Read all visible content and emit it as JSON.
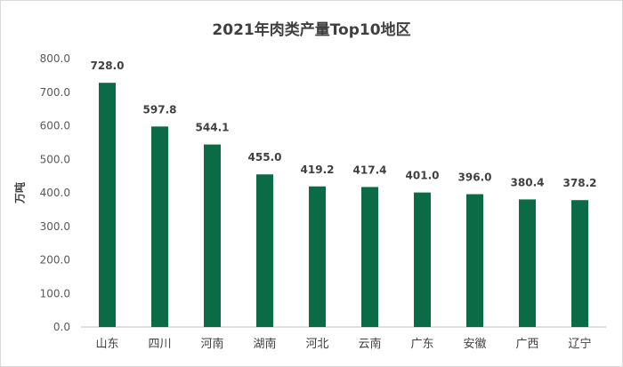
{
  "chart_data": {
    "type": "bar",
    "title": "2021年肉类产量Top10地区",
    "ylabel": "万吨",
    "xlabel": "",
    "categories": [
      "山东",
      "四川",
      "河南",
      "湖南",
      "河北",
      "云南",
      "广东",
      "安徽",
      "广西",
      "辽宁"
    ],
    "values": [
      728.0,
      597.8,
      544.1,
      455.0,
      419.2,
      417.4,
      401.0,
      396.0,
      380.4,
      378.2
    ],
    "value_labels": [
      "728.0",
      "597.8",
      "544.1",
      "455.0",
      "419.2",
      "417.4",
      "401.0",
      "396.0",
      "380.4",
      "378.2"
    ],
    "ylim": [
      0,
      800
    ],
    "yticks": [
      "0.0",
      "100.0",
      "200.0",
      "300.0",
      "400.0",
      "500.0",
      "600.0",
      "700.0",
      "800.0"
    ],
    "grid": false,
    "legend": "none",
    "bar_color": "#0b6b46",
    "axis_color": "#bfbfbf"
  }
}
